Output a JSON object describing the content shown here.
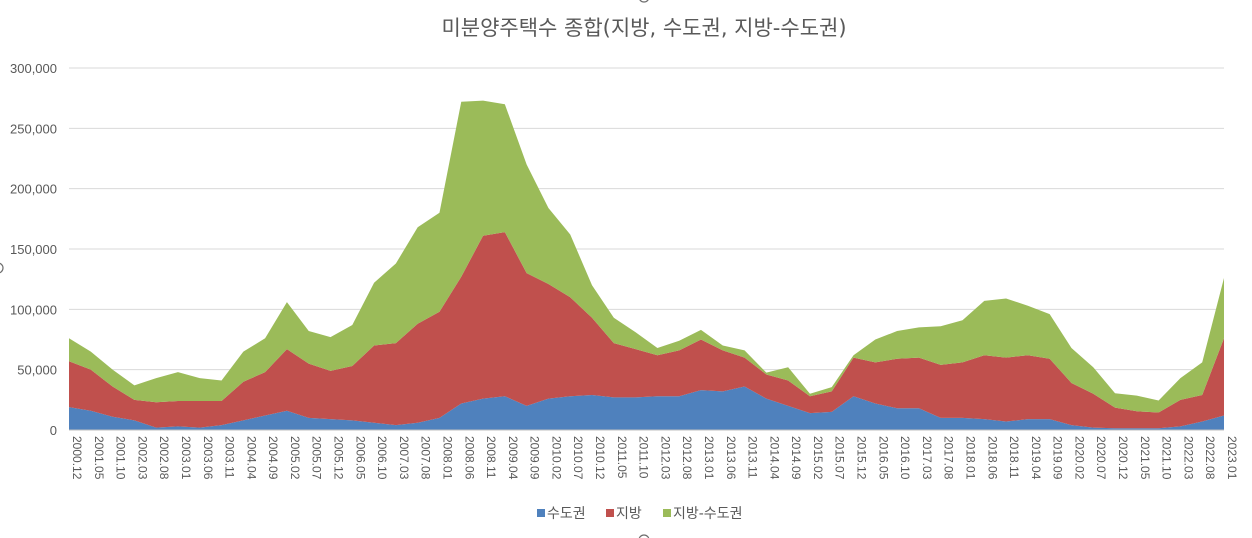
{
  "chart_data": {
    "type": "area",
    "stacked": true,
    "title": "미분양주택수 종합(지방, 수도권, 지방-수도권)",
    "xlabel": "",
    "ylabel": "",
    "ylim": [
      0,
      300000
    ],
    "yticks": [
      "0",
      "50,000",
      "100,000",
      "150,000",
      "200,000",
      "250,000",
      "300,000"
    ],
    "xticks": [
      "2000.12",
      "2001.05",
      "2001.10",
      "2002.03",
      "2002.08",
      "2003.01",
      "2003.06",
      "2003.11",
      "2004.04",
      "2004.09",
      "2005.02",
      "2005.07",
      "2005.12",
      "2006.05",
      "2006.10",
      "2007.03",
      "2007.08",
      "2008.01",
      "2008.06",
      "2008.11",
      "2009.04",
      "2009.09",
      "2010.02",
      "2010.07",
      "2010.12",
      "2011.05",
      "2011.10",
      "2012.03",
      "2012.08",
      "2013.01",
      "2013.06",
      "2013.11",
      "2014.04",
      "2014.09",
      "2015.02",
      "2015.07",
      "2015.12",
      "2016.05",
      "2016.10",
      "2017.03",
      "2017.08",
      "2018.01",
      "2018.06",
      "2018.11",
      "2019.04",
      "2019.09",
      "2020.02",
      "2020.07",
      "2020.12",
      "2021.05",
      "2021.10",
      "2022.03",
      "2022.08",
      "2023.01"
    ],
    "grid": true,
    "legend_position": "bottom",
    "series": [
      {
        "name": "수도권",
        "color": "#4F81BD",
        "values": [
          19000,
          16000,
          11000,
          8000,
          2000,
          3000,
          2000,
          4000,
          8000,
          12000,
          16000,
          10000,
          9000,
          8000,
          6000,
          4000,
          6000,
          10000,
          22000,
          26000,
          28000,
          20000,
          26000,
          28000,
          29000,
          27000,
          27000,
          28000,
          28000,
          33000,
          32000,
          36000,
          26000,
          20000,
          14000,
          15000,
          28000,
          22000,
          18000,
          18000,
          10000,
          10000,
          9000,
          7000,
          9000,
          9000,
          4000,
          2000,
          1500,
          1500,
          1500,
          3000,
          7000,
          12000
        ]
      },
      {
        "name": "지방",
        "color": "#C0504D",
        "values": [
          38000,
          34000,
          25000,
          17000,
          21000,
          21000,
          22000,
          20000,
          32000,
          36000,
          51000,
          45000,
          40000,
          45000,
          64000,
          68000,
          82000,
          88000,
          105000,
          135000,
          136000,
          110000,
          95000,
          82000,
          64000,
          45000,
          40000,
          34000,
          38000,
          42000,
          34000,
          24000,
          20000,
          21000,
          14000,
          17000,
          32000,
          34000,
          41000,
          42000,
          44000,
          46000,
          53000,
          53000,
          53000,
          50000,
          35000,
          28000,
          17000,
          14000,
          13000,
          22000,
          22000,
          64000
        ]
      },
      {
        "name": "지방-수도권",
        "color": "#9BBB59",
        "values": [
          19000,
          15000,
          14000,
          12000,
          20000,
          24000,
          19000,
          17000,
          25000,
          28000,
          39000,
          27000,
          28000,
          34000,
          52000,
          66000,
          80000,
          82000,
          145000,
          112000,
          106000,
          90000,
          63000,
          52000,
          27000,
          21000,
          14000,
          6000,
          8000,
          8000,
          4000,
          6000,
          1500,
          11000,
          2000,
          3500,
          2000,
          19000,
          23000,
          25000,
          32000,
          35000,
          45000,
          49000,
          41000,
          37000,
          29000,
          22000,
          12000,
          13000,
          10000,
          18000,
          27000,
          50000
        ]
      }
    ]
  }
}
